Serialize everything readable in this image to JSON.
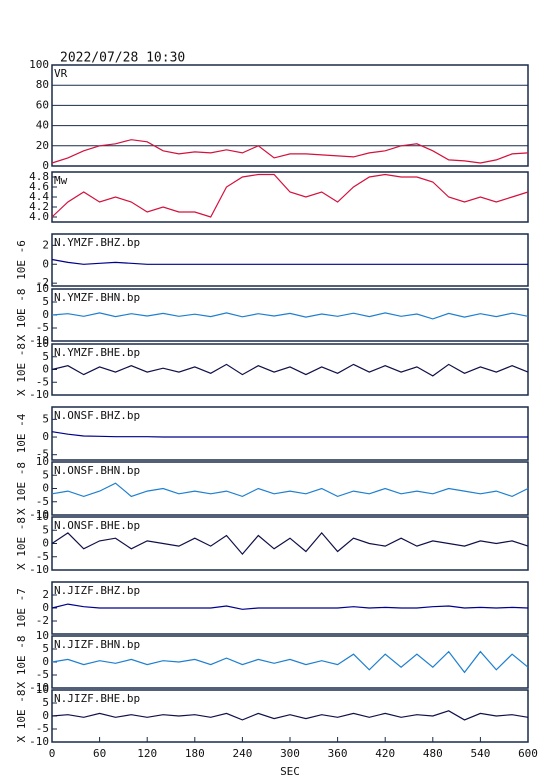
{
  "header": {
    "timestamp": "2022/07/28  10:30"
  },
  "chart_data": [
    {
      "type": "line",
      "title": "VR",
      "xlim": [
        0,
        600
      ],
      "ylim": [
        0,
        100
      ],
      "yticks": [
        100,
        80,
        60,
        40,
        20,
        0
      ],
      "grid": true,
      "color": "#d4103c",
      "x": [
        0,
        20,
        40,
        60,
        80,
        100,
        120,
        140,
        160,
        180,
        200,
        220,
        240,
        260,
        280,
        300,
        320,
        340,
        360,
        380,
        400,
        420,
        440,
        460,
        480,
        500,
        520,
        540,
        560,
        580,
        600
      ],
      "values": [
        3,
        8,
        15,
        20,
        22,
        26,
        24,
        15,
        12,
        14,
        13,
        16,
        13,
        20,
        8,
        12,
        12,
        11,
        10,
        9,
        13,
        15,
        20,
        22,
        15,
        6,
        5,
        3,
        6,
        12,
        13
      ]
    },
    {
      "type": "line",
      "title": "Mw",
      "xlim": [
        0,
        600
      ],
      "ylim": [
        3.9,
        4.9
      ],
      "yticks": [
        4.8,
        4.6,
        4.4,
        4.2,
        {
          "value": 4,
          "label": "4.0"
        }
      ],
      "grid": false,
      "color": "#d4103c",
      "x": [
        0,
        20,
        40,
        60,
        80,
        100,
        120,
        140,
        160,
        180,
        200,
        220,
        240,
        260,
        280,
        300,
        320,
        340,
        360,
        380,
        400,
        420,
        440,
        460,
        480,
        500,
        520,
        540,
        560,
        580,
        600
      ],
      "values": [
        4.0,
        4.3,
        4.5,
        4.3,
        4.4,
        4.3,
        4.1,
        4.2,
        4.1,
        4.1,
        4.0,
        4.6,
        4.8,
        4.85,
        4.85,
        4.5,
        4.4,
        4.5,
        4.3,
        4.6,
        4.8,
        4.85,
        4.8,
        4.8,
        4.7,
        4.4,
        4.3,
        4.4,
        4.3,
        4.4,
        4.5
      ]
    },
    {
      "type": "line",
      "title": "N.YMZF.BHZ.bp",
      "ylabel": "10E -6",
      "xlim": [
        0,
        600
      ],
      "ylim": [
        -2.3,
        3.2
      ],
      "yticks": [
        2,
        0,
        -2
      ],
      "color": "#00008b",
      "x": [
        0,
        20,
        40,
        60,
        80,
        100,
        120,
        140,
        160,
        180,
        200,
        220,
        240,
        260,
        280,
        300,
        320,
        340,
        360,
        380,
        400,
        420,
        440,
        460,
        480,
        500,
        520,
        540,
        560,
        580,
        600
      ],
      "values": [
        0.5,
        0.2,
        0,
        0.1,
        0.2,
        0.1,
        0,
        0,
        0,
        0,
        0,
        0,
        0,
        0,
        0,
        0,
        0,
        0,
        0,
        0,
        0,
        0,
        0,
        0,
        0,
        0,
        0,
        0,
        0,
        0,
        0
      ]
    },
    {
      "type": "line",
      "title": "N.YMZF.BHN.bp",
      "ylabel": "X 10E -8",
      "xlim": [
        0,
        600
      ],
      "ylim": [
        -10,
        10
      ],
      "yticks": [
        10,
        5,
        0,
        -5,
        -10
      ],
      "color": "#1e7fd0",
      "x": [
        0,
        20,
        40,
        60,
        80,
        100,
        120,
        140,
        160,
        180,
        200,
        220,
        240,
        260,
        280,
        300,
        320,
        340,
        360,
        380,
        400,
        420,
        440,
        460,
        480,
        500,
        520,
        540,
        560,
        580,
        600
      ],
      "values": [
        0,
        0.5,
        -0.5,
        0.8,
        -0.6,
        0.5,
        -0.4,
        0.6,
        -0.5,
        0.3,
        -0.6,
        0.8,
        -0.7,
        0.5,
        -0.4,
        0.6,
        -0.8,
        0.4,
        -0.5,
        0.7,
        -0.6,
        0.8,
        -0.5,
        0.4,
        -1.5,
        0.6,
        -0.8,
        0.5,
        -0.6,
        0.7,
        -0.5
      ]
    },
    {
      "type": "line",
      "title": "N.YMZF.BHE.bp",
      "ylabel": "X 10E -8",
      "xlim": [
        0,
        600
      ],
      "ylim": [
        -10,
        10
      ],
      "yticks": [
        10,
        5,
        0,
        -5,
        -10
      ],
      "color": "#101048",
      "x": [
        0,
        20,
        40,
        60,
        80,
        100,
        120,
        140,
        160,
        180,
        200,
        220,
        240,
        260,
        280,
        300,
        320,
        340,
        360,
        380,
        400,
        420,
        440,
        460,
        480,
        500,
        520,
        540,
        560,
        580,
        600
      ],
      "values": [
        0,
        1.5,
        -2,
        1,
        -1,
        1.5,
        -1,
        0.5,
        -1,
        1,
        -1.5,
        2,
        -2,
        1.5,
        -1,
        1,
        -2,
        1,
        -1.5,
        2,
        -1,
        1.5,
        -1,
        1,
        -2.5,
        2,
        -1.5,
        1,
        -1,
        1.5,
        -1
      ]
    },
    {
      "type": "line",
      "title": "N.ONSF.BHZ.bp",
      "ylabel": "10E -4",
      "xlim": [
        0,
        600
      ],
      "ylim": [
        -6.5,
        8.5
      ],
      "yticks": [
        5,
        0,
        -5
      ],
      "color": "#00008b",
      "x": [
        0,
        20,
        40,
        60,
        80,
        100,
        120,
        140,
        160,
        180,
        200,
        220,
        240,
        260,
        280,
        300,
        320,
        340,
        360,
        380,
        400,
        420,
        440,
        460,
        480,
        500,
        520,
        540,
        560,
        580,
        600
      ],
      "values": [
        1.5,
        0.8,
        0.3,
        0.2,
        0.1,
        0.1,
        0.1,
        0,
        0,
        0,
        0,
        0,
        0,
        0,
        0,
        0,
        0,
        0,
        0,
        0,
        0,
        0,
        0,
        0,
        0,
        0,
        0,
        0,
        0,
        0,
        0
      ]
    },
    {
      "type": "line",
      "title": "N.ONSF.BHN.bp",
      "ylabel": "X 10E -8",
      "xlim": [
        0,
        600
      ],
      "ylim": [
        -10,
        10
      ],
      "yticks": [
        10,
        5,
        0,
        -5,
        -10
      ],
      "color": "#1e7fd0",
      "x": [
        0,
        20,
        40,
        60,
        80,
        100,
        120,
        140,
        160,
        180,
        200,
        220,
        240,
        260,
        280,
        300,
        320,
        340,
        360,
        380,
        400,
        420,
        440,
        460,
        480,
        500,
        520,
        540,
        560,
        580,
        600
      ],
      "values": [
        -2,
        -1,
        -3,
        -1,
        2,
        -3,
        -1,
        0,
        -2,
        -1,
        -2,
        -1,
        -3,
        0,
        -2,
        -1,
        -2,
        0,
        -3,
        -1,
        -2,
        0,
        -2,
        -1,
        -2,
        0,
        -1,
        -2,
        -1,
        -3,
        0
      ]
    },
    {
      "type": "line",
      "title": "N.ONSF.BHE.bp",
      "ylabel": "X 10E -8",
      "xlim": [
        0,
        600
      ],
      "ylim": [
        -10,
        10
      ],
      "yticks": [
        10,
        5,
        0,
        -5,
        -10
      ],
      "color": "#101048",
      "x": [
        0,
        20,
        40,
        60,
        80,
        100,
        120,
        140,
        160,
        180,
        200,
        220,
        240,
        260,
        280,
        300,
        320,
        340,
        360,
        380,
        400,
        420,
        440,
        460,
        480,
        500,
        520,
        540,
        560,
        580,
        600
      ],
      "values": [
        0,
        4,
        -2,
        1,
        2,
        -2,
        1,
        0,
        -1,
        2,
        -1,
        3,
        -4,
        3,
        -2,
        2,
        -3,
        4,
        -3,
        2,
        0,
        -1,
        2,
        -1,
        1,
        0,
        -1,
        1,
        0,
        1,
        -1
      ]
    },
    {
      "type": "line",
      "title": "N.JIZF.BHZ.bp",
      "ylabel": "10E -7",
      "xlim": [
        0,
        600
      ],
      "ylim": [
        -4,
        4
      ],
      "yticks": [
        2,
        0,
        -2
      ],
      "color": "#00008b",
      "x": [
        0,
        20,
        40,
        60,
        80,
        100,
        120,
        140,
        160,
        180,
        200,
        220,
        240,
        260,
        280,
        300,
        320,
        340,
        360,
        380,
        400,
        420,
        440,
        460,
        480,
        500,
        520,
        540,
        560,
        580,
        600
      ],
      "values": [
        0,
        0.6,
        0.2,
        0,
        0,
        0,
        0,
        0,
        0,
        0,
        0,
        0.3,
        -0.2,
        0,
        0,
        0,
        0,
        0,
        0,
        0.2,
        0,
        0.1,
        0,
        0,
        0.2,
        0.3,
        0,
        0.1,
        0,
        0.1,
        0
      ]
    },
    {
      "type": "line",
      "title": "N.JIZF.BHN.bp",
      "ylabel": "X 10E -8",
      "xlim": [
        0,
        600
      ],
      "ylim": [
        -10,
        10
      ],
      "yticks": [
        10,
        5,
        0,
        -5,
        -10
      ],
      "color": "#1e7fd0",
      "x": [
        0,
        20,
        40,
        60,
        80,
        100,
        120,
        140,
        160,
        180,
        200,
        220,
        240,
        260,
        280,
        300,
        320,
        340,
        360,
        380,
        400,
        420,
        440,
        460,
        480,
        500,
        520,
        540,
        560,
        580,
        600
      ],
      "values": [
        0,
        1,
        -1,
        0.5,
        -0.5,
        1,
        -1,
        0.5,
        0,
        1,
        -1,
        1.5,
        -1,
        1,
        -0.5,
        1,
        -1,
        0.5,
        -1,
        3,
        -3,
        3,
        -2,
        3,
        -2,
        4,
        -4,
        4,
        -3,
        3,
        -2
      ]
    },
    {
      "type": "line",
      "title": "N.JIZF.BHE.bp",
      "ylabel": "X 10E -8",
      "xlabel": "SEC",
      "xlim": [
        0,
        600
      ],
      "xticks": [
        0,
        60,
        120,
        180,
        240,
        300,
        360,
        420,
        480,
        540,
        600
      ],
      "ylim": [
        -10,
        10
      ],
      "yticks": [
        10,
        5,
        0,
        -5,
        -10
      ],
      "color": "#101048",
      "x": [
        0,
        20,
        40,
        60,
        80,
        100,
        120,
        140,
        160,
        180,
        200,
        220,
        240,
        260,
        280,
        300,
        320,
        340,
        360,
        380,
        400,
        420,
        440,
        460,
        480,
        500,
        520,
        540,
        560,
        580,
        600
      ],
      "values": [
        0,
        0.5,
        -0.5,
        1,
        -0.5,
        0.5,
        -0.5,
        0.5,
        0,
        0.5,
        -0.5,
        1,
        -1.5,
        1,
        -1,
        0.5,
        -1,
        0.5,
        -0.5,
        1,
        -0.5,
        1,
        -0.5,
        0.5,
        0,
        2,
        -1.5,
        1,
        0,
        0.5,
        -0.5
      ]
    }
  ]
}
